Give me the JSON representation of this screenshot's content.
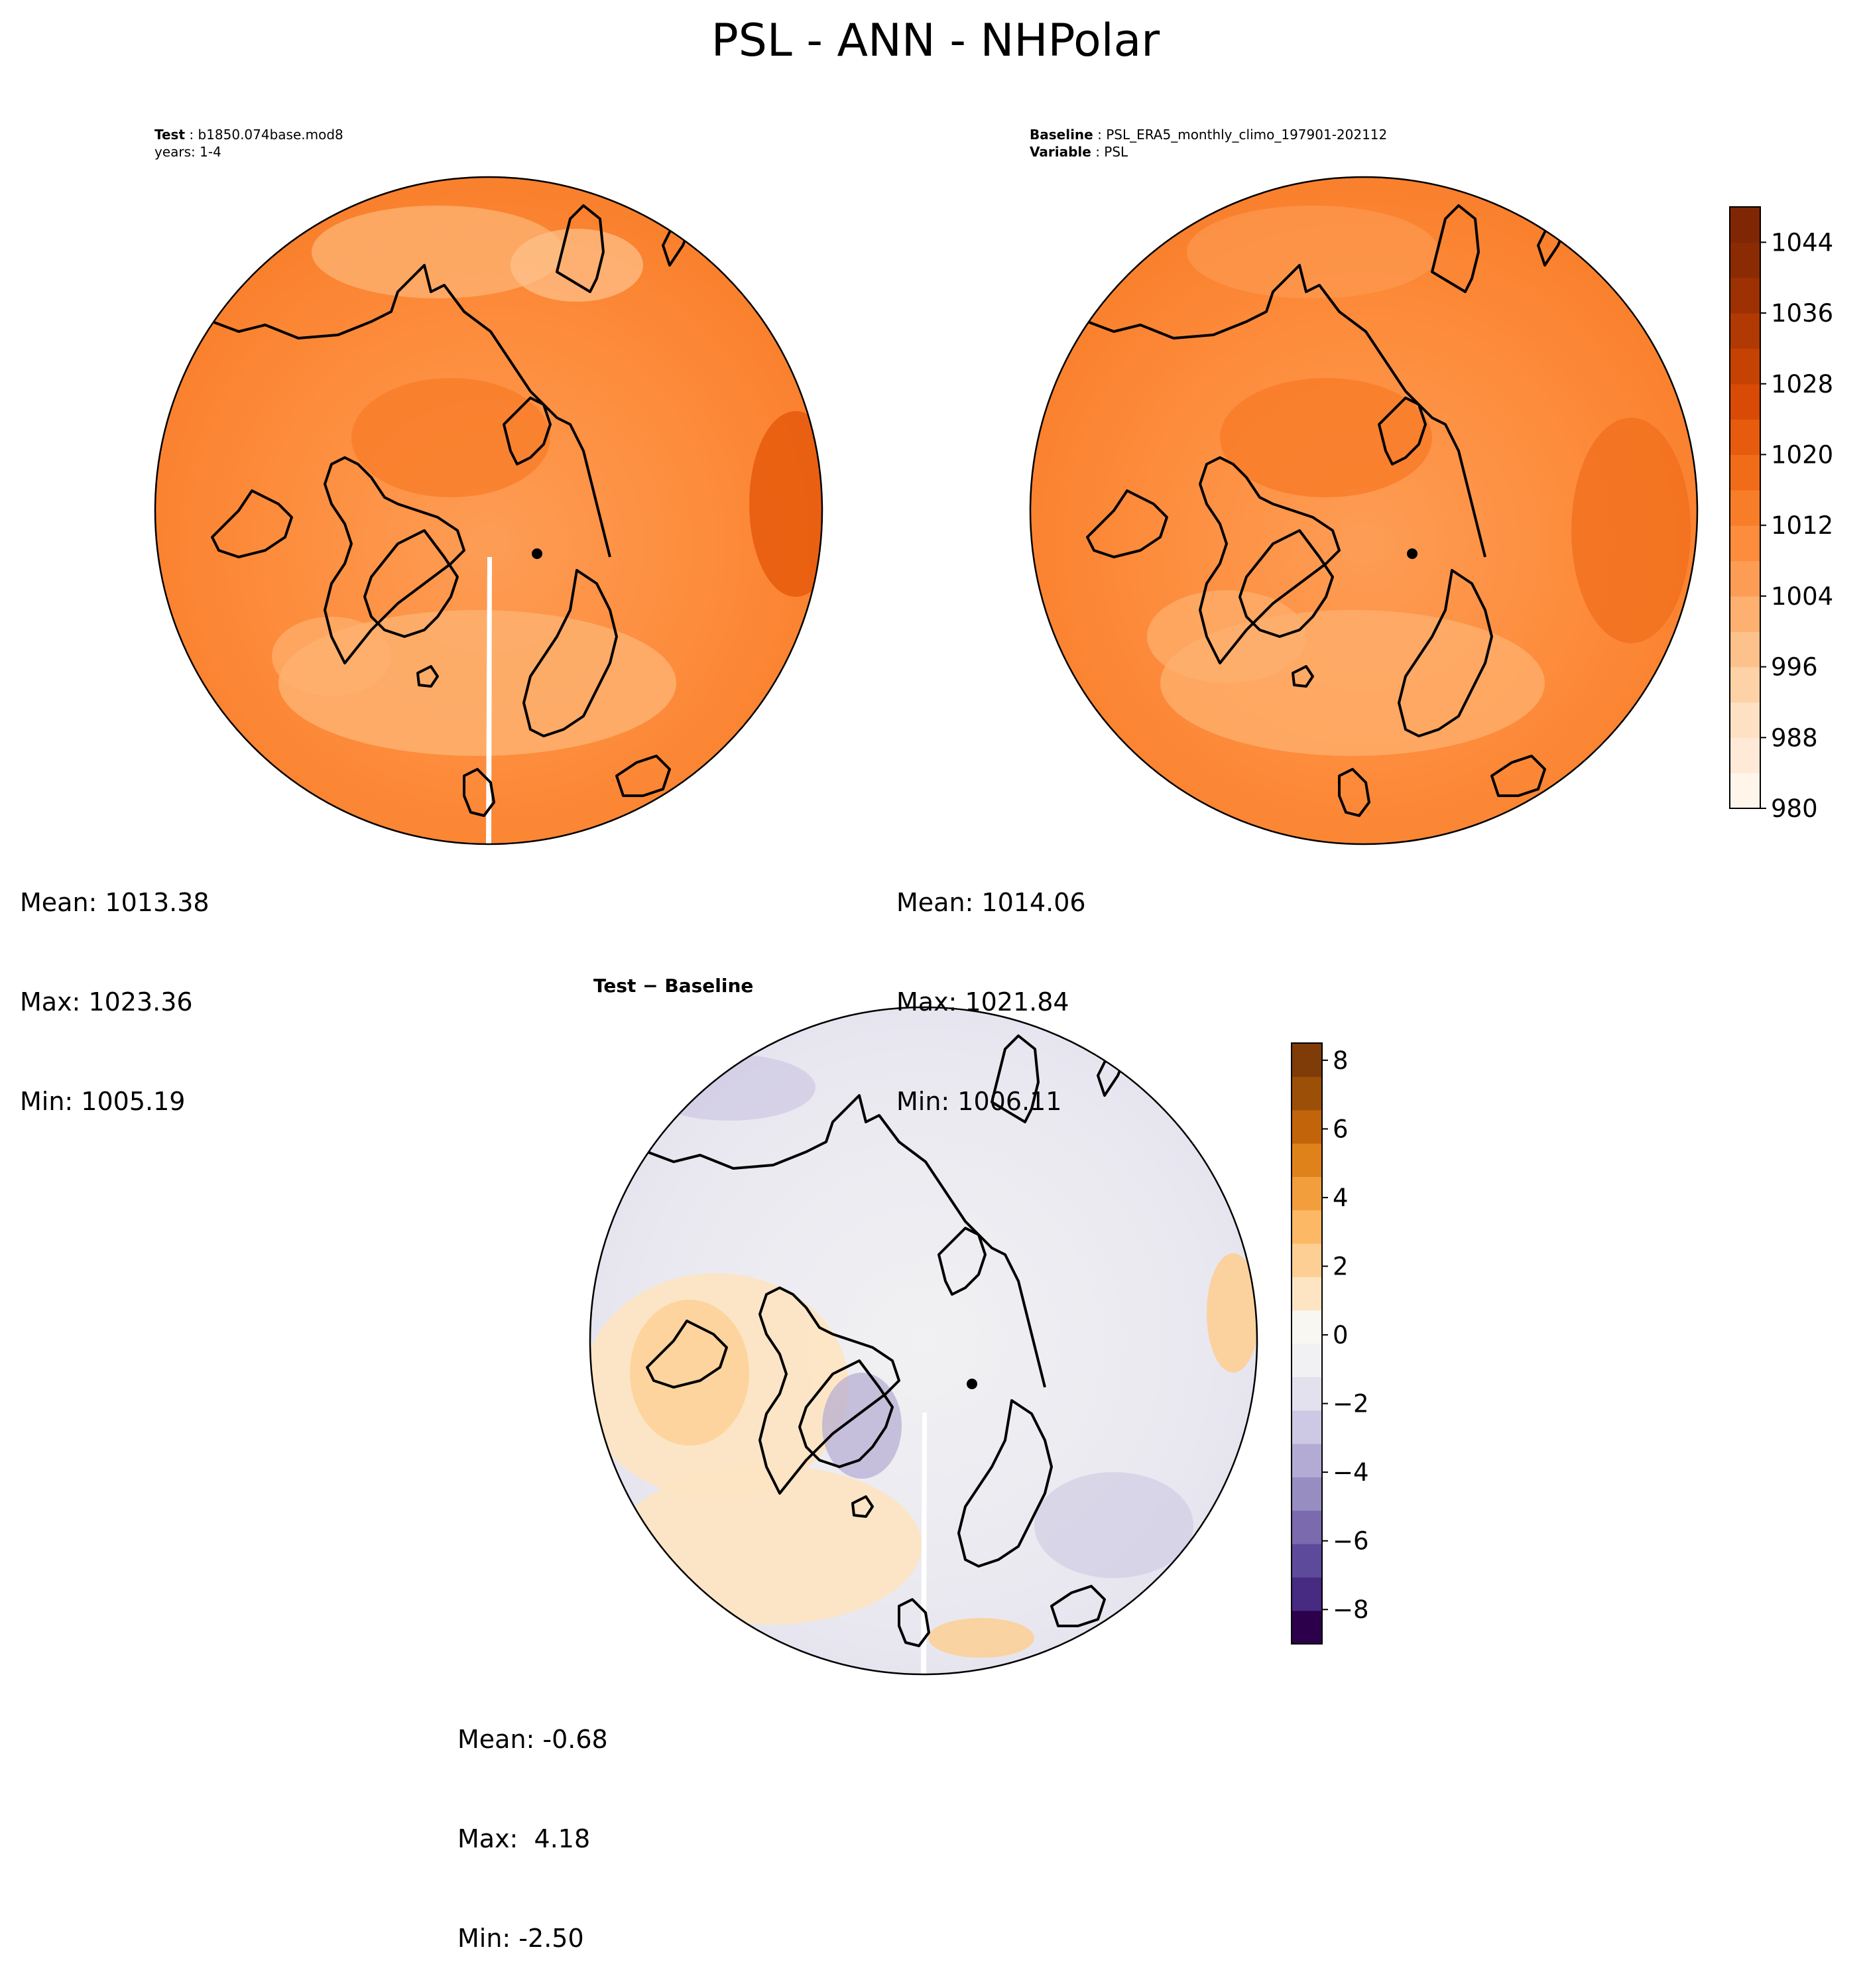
{
  "figure_title": "PSL - ANN - NHPolar",
  "panels": {
    "test": {
      "label": "Test",
      "case": "b1850.074base.mod8",
      "years": "years: 1-4",
      "mean": "Mean: 1013.38",
      "max": "Max: 1023.36",
      "min": "Min: 1005.19"
    },
    "baseline": {
      "label": "Baseline",
      "case": "PSL_ERA5_monthly_climo_197901-202112",
      "variable_label": "Variable",
      "variable": "PSL",
      "mean": "Mean: 1014.06",
      "max": "Max: 1021.84",
      "min": "Min: 1006.11"
    },
    "diff": {
      "title": "Test − Baseline",
      "mean": "Mean: -0.68",
      "max": "Max:  4.18",
      "min": "Min: -2.50"
    }
  },
  "chart_data": [
    {
      "type": "heatmap",
      "name": "Test",
      "projection": "north-polar-stereographic",
      "colormap": "Oranges",
      "stats": {
        "mean": 1013.38,
        "max": 1023.36,
        "min": 1005.19
      }
    },
    {
      "type": "heatmap",
      "name": "Baseline",
      "projection": "north-polar-stereographic",
      "colormap": "Oranges",
      "stats": {
        "mean": 1014.06,
        "max": 1021.84,
        "min": 1006.11
      },
      "colorbar": {
        "range": [
          980,
          1048
        ],
        "ticks": [
          "980",
          "988",
          "996",
          "1004",
          "1012",
          "1020",
          "1028",
          "1036",
          "1044"
        ],
        "levels": [
          980,
          984,
          988,
          992,
          996,
          1000,
          1004,
          1008,
          1012,
          1016,
          1020,
          1024,
          1028,
          1032,
          1036,
          1040,
          1044,
          1048
        ],
        "colors": [
          "#fff5eb",
          "#feead6",
          "#fee1c3",
          "#fdd2a6",
          "#fdc28b",
          "#fdb06f",
          "#fd9d55",
          "#fd8c3c",
          "#f87d29",
          "#f06c19",
          "#e65b0d",
          "#d84a05",
          "#c64203",
          "#b13903",
          "#9d3104",
          "#8a2b04",
          "#7f2704"
        ]
      }
    },
    {
      "type": "heatmap",
      "name": "Test - Baseline",
      "projection": "north-polar-stereographic",
      "colormap": "PuOr_r",
      "stats": {
        "mean": -0.68,
        "max": 4.18,
        "min": -2.5
      },
      "colorbar": {
        "range": [
          -9,
          8.5
        ],
        "ticks": [
          "−8",
          "−6",
          "−4",
          "−2",
          "0",
          "2",
          "4",
          "6",
          "8"
        ],
        "colors": [
          "#2d004b",
          "#472a82",
          "#5e4a9a",
          "#7b6aae",
          "#978dc1",
          "#b3abd3",
          "#cdc8e3",
          "#e3e1ee",
          "#f1f1f3",
          "#f8f7f2",
          "#fde5c3",
          "#fdcf94",
          "#fdb866",
          "#f29e3c",
          "#e0821a",
          "#c2650a",
          "#9c4f06",
          "#7f3b08"
        ]
      }
    }
  ]
}
